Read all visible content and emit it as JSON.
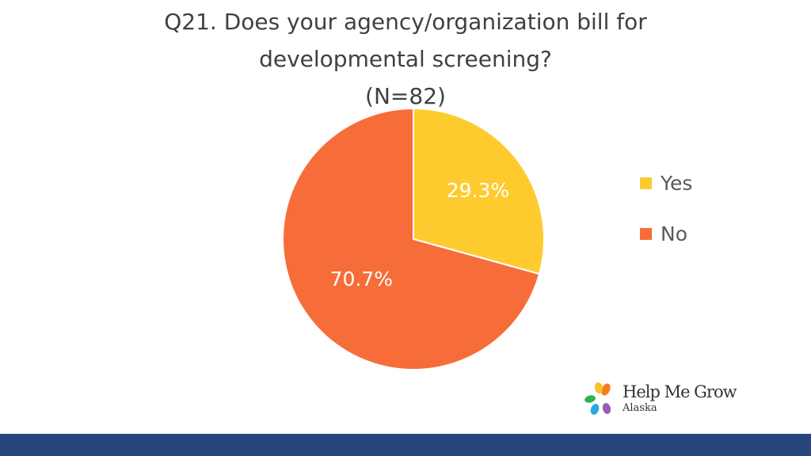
{
  "chart_data": {
    "type": "pie",
    "title_lines": [
      "Q21. Does your agency/organization bill for",
      "developmental screening?",
      "(N=82)"
    ],
    "slices": [
      {
        "label": "Yes",
        "value": 29.3,
        "display": "29.3%",
        "color": "#fecb2f"
      },
      {
        "label": "No",
        "value": 70.7,
        "display": "70.7%",
        "color": "#f76d39"
      }
    ],
    "legend_position": "right"
  },
  "logo": {
    "name": "Help Me Grow",
    "region": "Alaska",
    "petal_colors": [
      "#f47c20",
      "#f6c12b",
      "#2cb34a",
      "#27a9e1",
      "#9b59b6"
    ]
  },
  "footer": {
    "color": "#27467d"
  }
}
